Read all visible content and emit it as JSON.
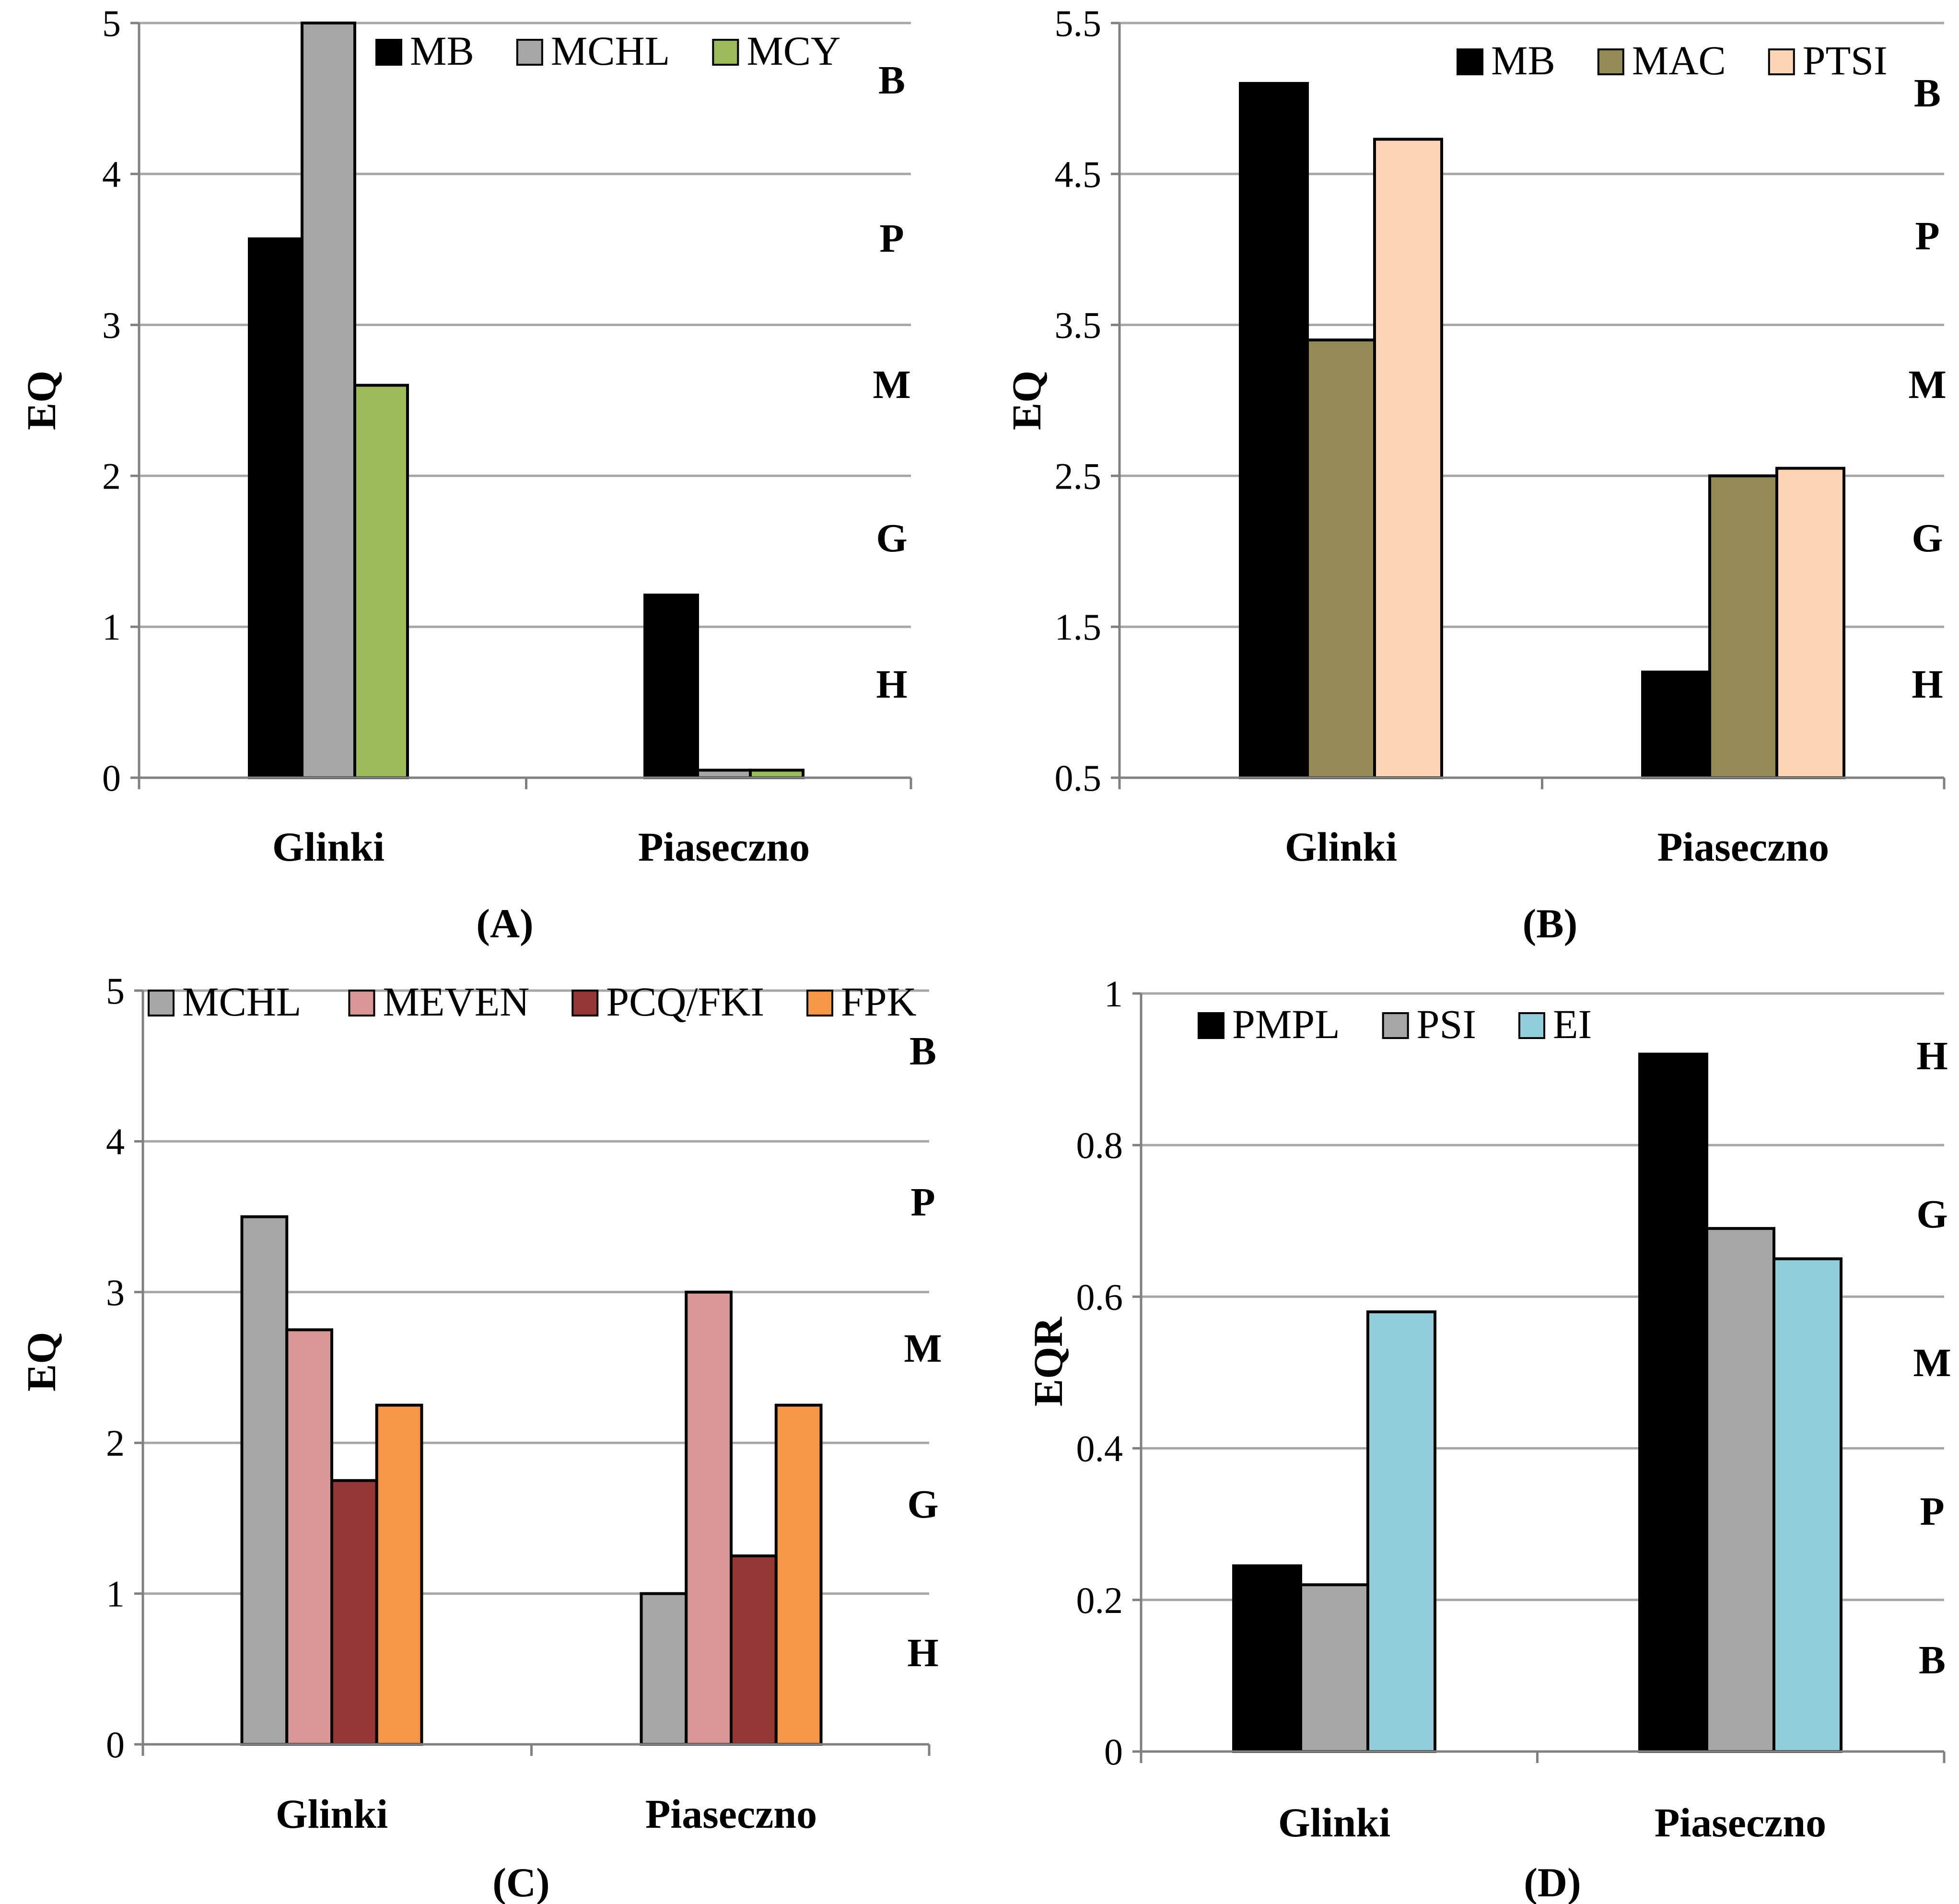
{
  "chart_data": [
    {
      "type": "bar",
      "panel_label": "(A)",
      "categories": [
        "Glinki",
        "Piaseczno"
      ],
      "series": [
        {
          "name": "MB",
          "color": "#000000",
          "values": [
            3.57,
            1.21
          ]
        },
        {
          "name": "MCHL",
          "color": "#a6a6a6",
          "values": [
            5.0,
            0.05
          ]
        },
        {
          "name": "MCY",
          "color": "#9bbb59",
          "values": [
            2.6,
            0.05
          ]
        }
      ],
      "ylabel": "EQ",
      "ylim": [
        0,
        5
      ],
      "yticks": [
        "0",
        "1",
        "2",
        "3",
        "4",
        "5"
      ],
      "zones": [
        "B",
        "P",
        "M",
        "G",
        "H"
      ],
      "grid": true,
      "legend": "top"
    },
    {
      "type": "bar",
      "panel_label": "(B)",
      "categories": [
        "Glinki",
        "Piaseczno"
      ],
      "series": [
        {
          "name": "MB",
          "color": "#000000",
          "values": [
            5.1,
            1.2
          ]
        },
        {
          "name": "MAC",
          "color": "#948a54",
          "values": [
            3.4,
            2.5
          ]
        },
        {
          "name": "PTSI",
          "color": "#fcd5b5",
          "values": [
            4.73,
            2.55
          ]
        }
      ],
      "ylabel": "EQ",
      "ylim": [
        0.5,
        5.5
      ],
      "yticks": [
        "0.5",
        "1.5",
        "2.5",
        "3.5",
        "4.5",
        "5.5"
      ],
      "zones": [
        "B",
        "P",
        "M",
        "G",
        "H"
      ],
      "grid": true,
      "legend": "top-right"
    },
    {
      "type": "bar",
      "panel_label": "(C)",
      "categories": [
        "Glinki",
        "Piaseczno"
      ],
      "series": [
        {
          "name": "MCHL",
          "color": "#a6a6a6",
          "values": [
            3.5,
            1.0
          ]
        },
        {
          "name": "MEVEN",
          "color": "#d99694",
          "values": [
            2.75,
            3.0
          ]
        },
        {
          "name": "PCQ/FKI",
          "color": "#953735",
          "values": [
            1.75,
            1.25
          ]
        },
        {
          "name": "FPK",
          "color": "#f79646",
          "values": [
            2.25,
            2.25
          ]
        }
      ],
      "ylabel": "EQ",
      "ylim": [
        0,
        5
      ],
      "yticks": [
        "0",
        "1",
        "2",
        "3",
        "4",
        "5"
      ],
      "zones": [
        "B",
        "P",
        "M",
        "G",
        "H"
      ],
      "grid": true,
      "legend": "top"
    },
    {
      "type": "bar",
      "panel_label": "(D)",
      "categories": [
        "Glinki",
        "Piaseczno"
      ],
      "series": [
        {
          "name": "PMPL",
          "color": "#000000",
          "values": [
            0.245,
            0.92
          ]
        },
        {
          "name": "PSI",
          "color": "#a6a6a6",
          "values": [
            0.22,
            0.69
          ]
        },
        {
          "name": "EI",
          "color": "#92cddc",
          "values": [
            0.58,
            0.65
          ]
        }
      ],
      "ylabel": "EQR",
      "ylim": [
        0,
        1
      ],
      "yticks": [
        "0",
        "0.2",
        "0.4",
        "0.6",
        "0.8",
        "1"
      ],
      "zones": [
        "H",
        "G",
        "M",
        "P",
        "B"
      ],
      "grid": true,
      "legend": "top-left"
    }
  ]
}
